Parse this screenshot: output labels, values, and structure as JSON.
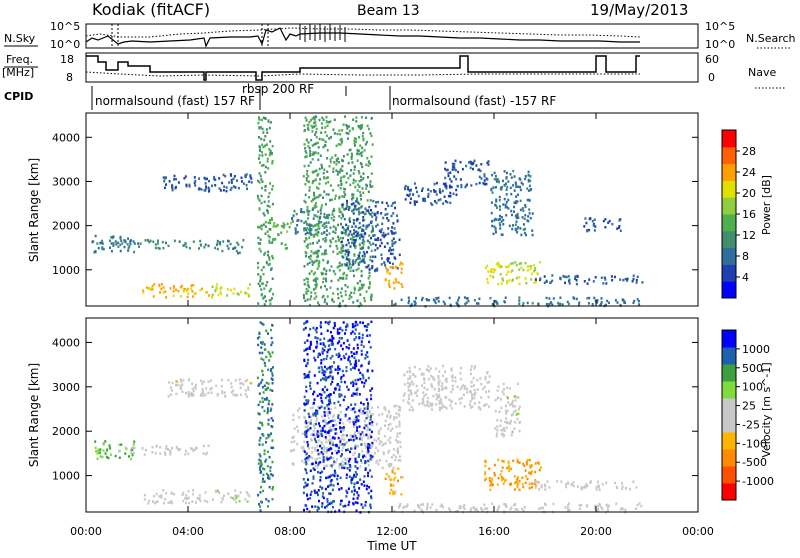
{
  "header": {
    "radar": "Kodiak (fitACF)",
    "beam": "Beam 13",
    "date": "19/May/2013"
  },
  "strip_labels": {
    "nsky": "N.Sky",
    "nsearch": "N.Search",
    "freq_line1": "Freq.",
    "freq_line2": "[MHz]",
    "nave": "Nave",
    "cpid": "CPID"
  },
  "strip_ticks": {
    "noise_left_top": "10^5",
    "noise_left_bottom": "10^0",
    "noise_right_top": "10^5",
    "noise_right_bottom": "10^0",
    "freq_left_top": "18",
    "freq_left_bottom": "8",
    "nave_right_top": "60",
    "nave_right_bottom": "0"
  },
  "cpid_labels": [
    {
      "text": "normalsound (fast) 157 RF",
      "start_hour": 0.0
    },
    {
      "text": "rbsp 200 RF",
      "start_hour": 6.95
    },
    {
      "text": "normalsound (fast) -157 RF",
      "start_hour": 12.0
    }
  ],
  "colorbars": {
    "power": {
      "label": "Power [dB]",
      "ticks": [
        "28",
        "24",
        "20",
        "16",
        "12",
        "8",
        "4"
      ],
      "colors": [
        "#0000ff",
        "#1f3fb0",
        "#2f6f9f",
        "#3f8f6f",
        "#4faf4f",
        "#8fcf3f",
        "#dfdf00",
        "#ffa000",
        "#ff6000",
        "#ff0000"
      ]
    },
    "velocity": {
      "label": "Velocity [m s^-1]",
      "ticks": [
        "1000",
        "500",
        "100",
        "25",
        "-25",
        "-100",
        "-500",
        "-1000"
      ],
      "colors": [
        "#ff0000",
        "#ff5000",
        "#ff8c00",
        "#ffb400",
        "#c8c8c8",
        "#c8c8c8",
        "#7fdc3f",
        "#3f9f3f",
        "#1f5fb0",
        "#0000ff"
      ]
    }
  },
  "colors": {
    "ground_scatter": "#a0a0a0"
  },
  "chart_data": [
    {
      "type": "heatmap",
      "panel": "power",
      "ylabel": "Slant Range [km]",
      "xlabel": "",
      "xlim": [
        0,
        24
      ],
      "ylim": [
        180,
        4550
      ],
      "yticks": [
        1000,
        2000,
        3000,
        4000
      ],
      "xticks": [
        "00:00",
        "04:00",
        "08:00",
        "12:00",
        "16:00",
        "20:00",
        "00:00"
      ],
      "value_units": "dB",
      "regions": [
        {
          "x": [
            0.2,
            1.9
          ],
          "y": [
            1400,
            1800
          ],
          "value": 8
        },
        {
          "x": [
            1.2,
            4.8
          ],
          "y": [
            1500,
            1700
          ],
          "value": 10
        },
        {
          "x": [
            2.2,
            4.8
          ],
          "y": [
            400,
            700
          ],
          "value": 22
        },
        {
          "x": [
            4.9,
            6.4
          ],
          "y": [
            400,
            700
          ],
          "value": 18
        },
        {
          "x": [
            4.9,
            6.2
          ],
          "y": [
            1400,
            1700
          ],
          "value": 10
        },
        {
          "x": [
            3.0,
            6.5
          ],
          "y": [
            2800,
            3200
          ],
          "value": 6
        },
        {
          "x": [
            6.7,
            7.3
          ],
          "y": [
            200,
            4500
          ],
          "value": 12
        },
        {
          "x": [
            7.3,
            8.0
          ],
          "y": [
            1500,
            2100
          ],
          "value": 14
        },
        {
          "x": [
            8.0,
            9.5
          ],
          "y": [
            1800,
            2400
          ],
          "value": 8
        },
        {
          "x": [
            8.5,
            11.2
          ],
          "y": [
            200,
            4500
          ],
          "value": 12
        },
        {
          "x": [
            10.0,
            12.3
          ],
          "y": [
            1000,
            2600
          ],
          "value": 6
        },
        {
          "x": [
            11.7,
            12.4
          ],
          "y": [
            600,
            1200
          ],
          "value": 22
        },
        {
          "x": [
            12.4,
            14.5
          ],
          "y": [
            2500,
            3000
          ],
          "value": 6
        },
        {
          "x": [
            14.0,
            15.8
          ],
          "y": [
            2900,
            3500
          ],
          "value": 6
        },
        {
          "x": [
            15.8,
            17.5
          ],
          "y": [
            1800,
            3300
          ],
          "value": 8
        },
        {
          "x": [
            15.6,
            17.8
          ],
          "y": [
            700,
            1200
          ],
          "value": 18
        },
        {
          "x": [
            17.5,
            21.8
          ],
          "y": [
            700,
            900
          ],
          "value": 6
        },
        {
          "x": [
            19.5,
            21.0
          ],
          "y": [
            1900,
            2200
          ],
          "value": 6
        },
        {
          "x": [
            12.0,
            21.8
          ],
          "y": [
            200,
            400
          ],
          "value": 8
        }
      ]
    },
    {
      "type": "heatmap",
      "panel": "velocity",
      "ylabel": "Slant Range [km]",
      "xlabel": "Time UT",
      "xlim": [
        0,
        24
      ],
      "ylim": [
        180,
        4550
      ],
      "yticks": [
        1000,
        2000,
        3000,
        4000
      ],
      "xticks": [
        "00:00",
        "04:00",
        "08:00",
        "12:00",
        "16:00",
        "20:00",
        "00:00"
      ],
      "value_units": "m s^-1",
      "regions": [
        {
          "x": [
            0.2,
            1.9
          ],
          "y": [
            1400,
            1800
          ],
          "value": 400
        },
        {
          "x": [
            1.2,
            4.8
          ],
          "y": [
            1500,
            1700
          ],
          "value": 0
        },
        {
          "x": [
            2.2,
            4.8
          ],
          "y": [
            400,
            700
          ],
          "value": 0
        },
        {
          "x": [
            4.9,
            6.4
          ],
          "y": [
            400,
            700
          ],
          "value": 150
        },
        {
          "x": [
            3.0,
            6.5
          ],
          "y": [
            2800,
            3200
          ],
          "value": -100
        },
        {
          "x": [
            6.7,
            7.3
          ],
          "y": [
            200,
            4500
          ],
          "value": 600
        },
        {
          "x": [
            8.0,
            12.3
          ],
          "y": [
            1200,
            2600
          ],
          "value": 0
        },
        {
          "x": [
            8.5,
            11.2
          ],
          "y": [
            200,
            4500
          ],
          "value": 800
        },
        {
          "x": [
            11.7,
            12.4
          ],
          "y": [
            600,
            1200
          ],
          "value": -300
        },
        {
          "x": [
            12.4,
            15.8
          ],
          "y": [
            2500,
            3500
          ],
          "value": 0
        },
        {
          "x": [
            15.6,
            17.8
          ],
          "y": [
            700,
            1400
          ],
          "value": -400
        },
        {
          "x": [
            16.0,
            17.0
          ],
          "y": [
            1900,
            3100
          ],
          "value": 100
        },
        {
          "x": [
            17.5,
            21.8
          ],
          "y": [
            700,
            900
          ],
          "value": 0
        },
        {
          "x": [
            12.0,
            21.8
          ],
          "y": [
            200,
            400
          ],
          "value": -50
        }
      ]
    }
  ]
}
